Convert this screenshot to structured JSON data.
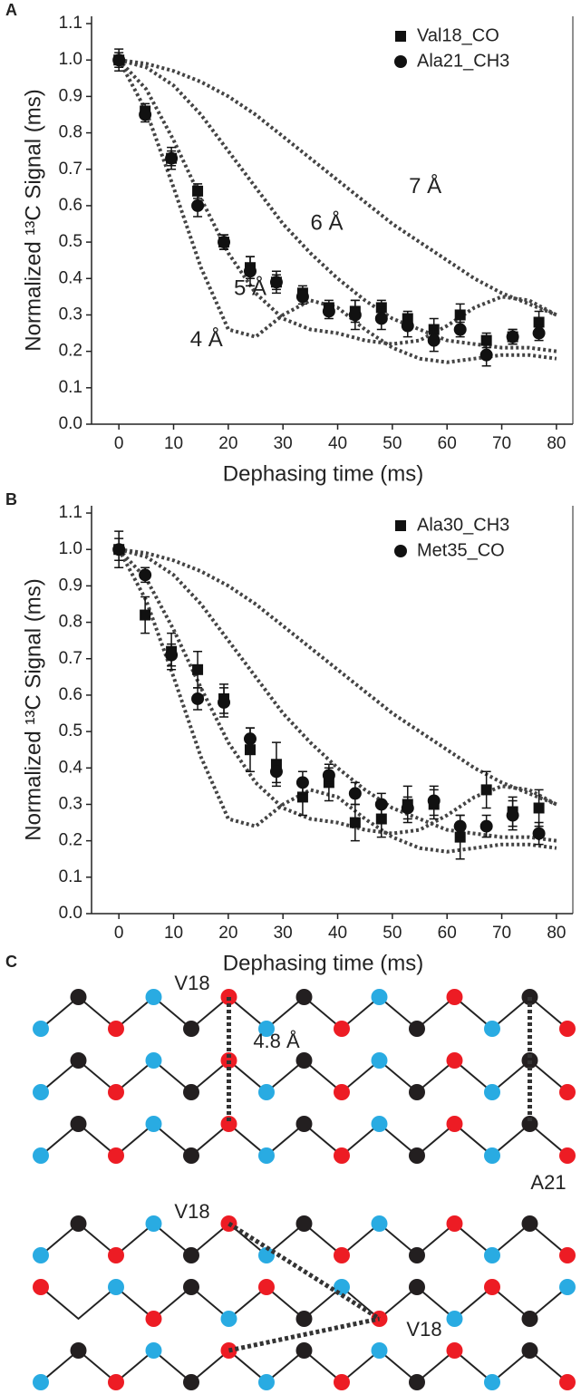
{
  "chart_data": [
    {
      "type": "scatter",
      "panel_label": "A",
      "xlabel": "Dephasing time (ms)",
      "ylabel": "Normalized ¹³C Signal (ms)",
      "xlim": [
        -5,
        83
      ],
      "ylim": [
        0,
        1.12
      ],
      "xticks": [
        0,
        10,
        20,
        30,
        40,
        50,
        60,
        70,
        80
      ],
      "yticks": [
        {
          "value": 0,
          "label": "0.0"
        },
        0.1,
        0.2,
        0.3,
        0.4,
        0.5,
        0.6,
        0.7,
        0.8,
        0.9,
        {
          "value": 1,
          "label": "1.0"
        },
        1.1
      ],
      "legend": "upper right",
      "x": [
        0,
        4.8,
        9.6,
        14.4,
        19.2,
        24,
        28.8,
        33.6,
        38.4,
        43.2,
        48,
        52.8,
        57.6,
        62.4,
        67.2,
        72,
        76.8
      ],
      "series": [
        {
          "name": "Val18_CO",
          "marker": "square",
          "color": "#111111",
          "values": [
            1.0,
            0.86,
            0.73,
            0.64,
            0.5,
            0.43,
            0.39,
            0.36,
            0.32,
            0.31,
            0.32,
            0.29,
            0.26,
            0.3,
            0.23,
            0.24,
            0.28
          ],
          "errors": [
            0.03,
            0.02,
            0.03,
            0.02,
            0.02,
            0.03,
            0.03,
            0.02,
            0.02,
            0.03,
            0.02,
            0.02,
            0.03,
            0.03,
            0.02,
            0.02,
            0.03
          ]
        },
        {
          "name": "Ala21_CH3",
          "marker": "circle",
          "color": "#111111",
          "values": [
            1.0,
            0.85,
            0.73,
            0.6,
            0.5,
            0.42,
            0.39,
            0.35,
            0.31,
            0.3,
            0.29,
            0.27,
            0.23,
            0.26,
            0.19,
            0.24,
            0.25
          ],
          "errors": [
            0.02,
            0.02,
            0.02,
            0.03,
            0.02,
            0.04,
            0.02,
            0.02,
            0.02,
            0.04,
            0.03,
            0.03,
            0.03,
            0.02,
            0.03,
            0.02,
            0.02
          ]
        }
      ],
      "curves": [
        {
          "label": "4 Å",
          "color": "#444444",
          "x": [
            0,
            5,
            10,
            15,
            20,
            25,
            30,
            35,
            40,
            45,
            50,
            55,
            60,
            65,
            70,
            75,
            80
          ],
          "values": [
            1.0,
            0.86,
            0.65,
            0.43,
            0.26,
            0.24,
            0.3,
            0.34,
            0.32,
            0.26,
            0.21,
            0.18,
            0.17,
            0.18,
            0.19,
            0.19,
            0.18
          ]
        },
        {
          "label": "5 Å",
          "color": "#444444",
          "x": [
            0,
            5,
            10,
            15,
            20,
            25,
            30,
            35,
            40,
            45,
            50,
            55,
            60,
            65,
            70,
            75,
            80
          ],
          "values": [
            1.0,
            0.92,
            0.78,
            0.62,
            0.47,
            0.36,
            0.29,
            0.26,
            0.25,
            0.23,
            0.22,
            0.23,
            0.27,
            0.32,
            0.35,
            0.34,
            0.3
          ]
        },
        {
          "label": "6 Å",
          "color": "#444444",
          "x": [
            0,
            5,
            10,
            15,
            20,
            25,
            30,
            35,
            40,
            45,
            50,
            55,
            60,
            65,
            70,
            75,
            80
          ],
          "values": [
            1.0,
            0.98,
            0.93,
            0.85,
            0.75,
            0.65,
            0.55,
            0.47,
            0.4,
            0.34,
            0.29,
            0.26,
            0.23,
            0.22,
            0.21,
            0.21,
            0.2
          ]
        },
        {
          "label": "7 Å",
          "color": "#444444",
          "x": [
            0,
            5,
            10,
            15,
            20,
            25,
            30,
            35,
            40,
            45,
            50,
            55,
            60,
            65,
            70,
            75,
            80
          ],
          "values": [
            1.0,
            0.99,
            0.97,
            0.94,
            0.9,
            0.85,
            0.79,
            0.73,
            0.67,
            0.61,
            0.55,
            0.5,
            0.45,
            0.4,
            0.36,
            0.33,
            0.3
          ]
        }
      ]
    },
    {
      "type": "scatter",
      "panel_label": "B",
      "xlabel": "Dephasing time (ms)",
      "ylabel": "Normalized ¹³C Signal (ms)",
      "xlim": [
        -5,
        83
      ],
      "ylim": [
        0,
        1.12
      ],
      "xticks": [
        0,
        10,
        20,
        30,
        40,
        50,
        60,
        70,
        80
      ],
      "yticks": [
        {
          "value": 0,
          "label": "0.0"
        },
        0.1,
        0.2,
        0.3,
        0.4,
        0.5,
        0.6,
        0.7,
        0.8,
        0.9,
        {
          "value": 1,
          "label": "1.0"
        },
        1.1
      ],
      "legend": "upper right",
      "x": [
        0,
        4.8,
        9.6,
        14.4,
        19.2,
        24,
        28.8,
        33.6,
        38.4,
        43.2,
        48,
        52.8,
        57.6,
        62.4,
        67.2,
        72,
        76.8
      ],
      "series": [
        {
          "name": "Ala30_CH3",
          "marker": "square",
          "color": "#111111",
          "values": [
            1.0,
            0.82,
            0.72,
            0.67,
            0.59,
            0.45,
            0.41,
            0.32,
            0.36,
            0.25,
            0.26,
            0.3,
            0.3,
            0.21,
            0.34,
            0.28,
            0.29
          ],
          "errors": [
            0.05,
            0.05,
            0.05,
            0.05,
            0.04,
            0.06,
            0.06,
            0.05,
            0.05,
            0.05,
            0.05,
            0.05,
            0.04,
            0.06,
            0.05,
            0.04,
            0.05
          ]
        },
        {
          "name": "Met35_CO",
          "marker": "circle",
          "color": "#111111",
          "values": [
            1.0,
            0.93,
            0.71,
            0.59,
            0.58,
            0.48,
            0.39,
            0.36,
            0.38,
            0.33,
            0.3,
            0.29,
            0.31,
            0.24,
            0.24,
            0.27,
            0.22
          ],
          "errors": [
            0.03,
            0.02,
            0.03,
            0.03,
            0.04,
            0.03,
            0.03,
            0.03,
            0.02,
            0.03,
            0.03,
            0.03,
            0.04,
            0.03,
            0.03,
            0.04,
            0.03
          ]
        }
      ],
      "curves": [
        {
          "color": "#444444",
          "x": [
            0,
            5,
            10,
            15,
            20,
            25,
            30,
            35,
            40,
            45,
            50,
            55,
            60,
            65,
            70,
            75,
            80
          ],
          "values": [
            1.0,
            0.86,
            0.65,
            0.43,
            0.26,
            0.24,
            0.3,
            0.34,
            0.32,
            0.26,
            0.21,
            0.18,
            0.17,
            0.18,
            0.19,
            0.19,
            0.18
          ]
        },
        {
          "color": "#444444",
          "x": [
            0,
            5,
            10,
            15,
            20,
            25,
            30,
            35,
            40,
            45,
            50,
            55,
            60,
            65,
            70,
            75,
            80
          ],
          "values": [
            1.0,
            0.92,
            0.78,
            0.62,
            0.47,
            0.36,
            0.29,
            0.26,
            0.25,
            0.23,
            0.22,
            0.23,
            0.27,
            0.32,
            0.35,
            0.34,
            0.3
          ]
        },
        {
          "color": "#444444",
          "x": [
            0,
            5,
            10,
            15,
            20,
            25,
            30,
            35,
            40,
            45,
            50,
            55,
            60,
            65,
            70,
            75,
            80
          ],
          "values": [
            1.0,
            0.98,
            0.93,
            0.85,
            0.75,
            0.65,
            0.55,
            0.47,
            0.4,
            0.34,
            0.29,
            0.26,
            0.23,
            0.22,
            0.21,
            0.21,
            0.2
          ]
        },
        {
          "color": "#444444",
          "x": [
            0,
            5,
            10,
            15,
            20,
            25,
            30,
            35,
            40,
            45,
            50,
            55,
            60,
            65,
            70,
            75,
            80
          ],
          "values": [
            1.0,
            0.99,
            0.97,
            0.94,
            0.9,
            0.85,
            0.79,
            0.73,
            0.67,
            0.61,
            0.55,
            0.5,
            0.45,
            0.4,
            0.36,
            0.33,
            0.3
          ]
        }
      ]
    }
  ],
  "diagram": {
    "panel_label": "C",
    "labels": [
      "V18",
      "4.8 Å",
      "A21",
      "V18",
      "V18"
    ]
  }
}
